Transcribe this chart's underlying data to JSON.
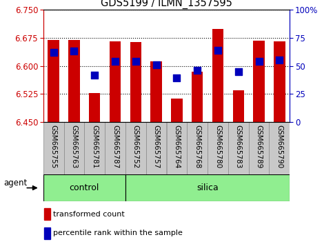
{
  "title": "GDS5199 / ILMN_1357595",
  "samples": [
    "GSM665755",
    "GSM665763",
    "GSM665781",
    "GSM665787",
    "GSM665752",
    "GSM665757",
    "GSM665764",
    "GSM665768",
    "GSM665780",
    "GSM665783",
    "GSM665789",
    "GSM665790"
  ],
  "n_control": 4,
  "n_silica": 8,
  "red_values": [
    6.67,
    6.669,
    6.528,
    6.665,
    6.664,
    6.612,
    6.513,
    6.584,
    6.698,
    6.534,
    6.668,
    6.665
  ],
  "blue_values_pct": [
    62,
    63,
    42,
    54,
    54,
    51,
    39,
    46,
    64,
    45,
    54,
    55
  ],
  "y_min": 6.45,
  "y_max": 6.75,
  "y_ticks_left": [
    6.45,
    6.525,
    6.6,
    6.675,
    6.75
  ],
  "y_ticks_right": [
    0,
    25,
    50,
    75,
    100
  ],
  "bar_color": "#CC0000",
  "dot_color": "#0000BB",
  "control_color": "#90EE90",
  "silica_color": "#90EE90",
  "agent_label": "agent",
  "control_label": "control",
  "silica_label": "silica",
  "legend_items": [
    "transformed count",
    "percentile rank within the sample"
  ],
  "bar_width": 0.55,
  "dot_size": 50,
  "xtick_bg": "#c8c8c8",
  "plot_bg": "white"
}
